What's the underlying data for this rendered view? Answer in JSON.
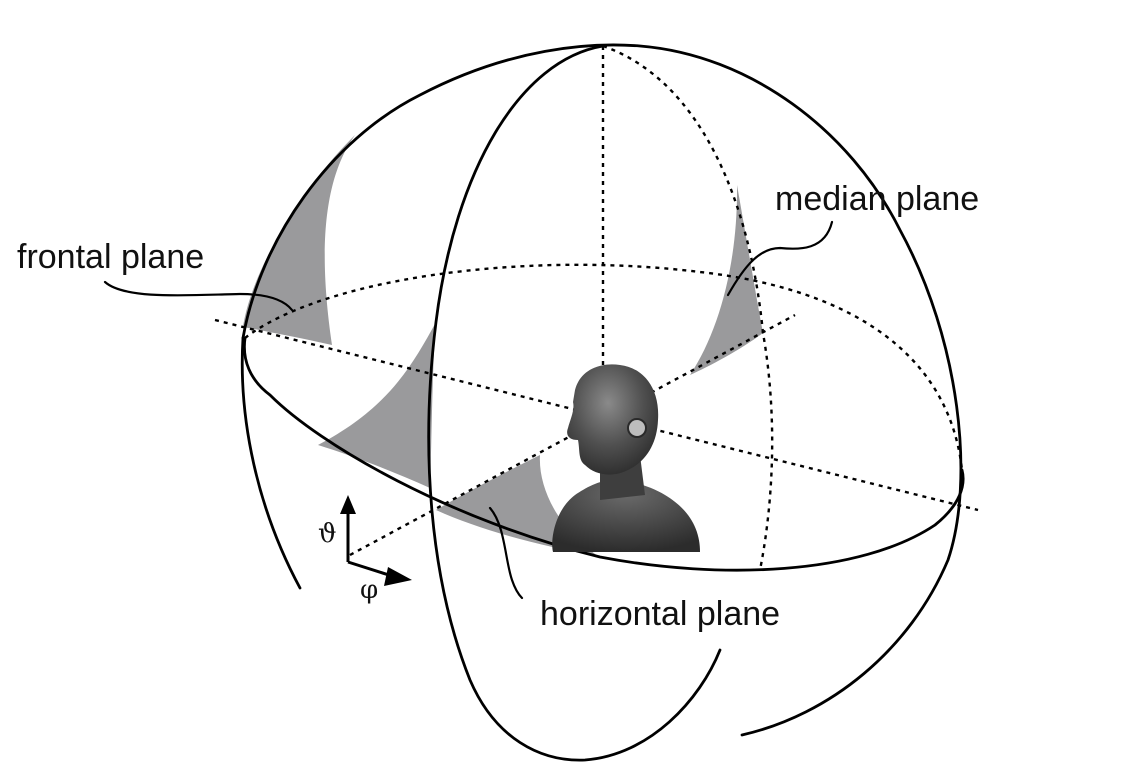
{
  "labels": {
    "frontal": "frontal plane",
    "median": "median plane",
    "horizontal": "horizontal plane",
    "elevation_symbol": "ϑ",
    "azimuth_symbol": "φ"
  },
  "icons": {
    "head": "head-bust-icon",
    "ear": "ear-icon",
    "elevation_arrow": "arrow-up-icon",
    "azimuth_arrow": "arrow-right-icon"
  },
  "colors": {
    "plane_fill": "#9a9a9c",
    "line": "#000000",
    "head": "#4a4a4a"
  }
}
